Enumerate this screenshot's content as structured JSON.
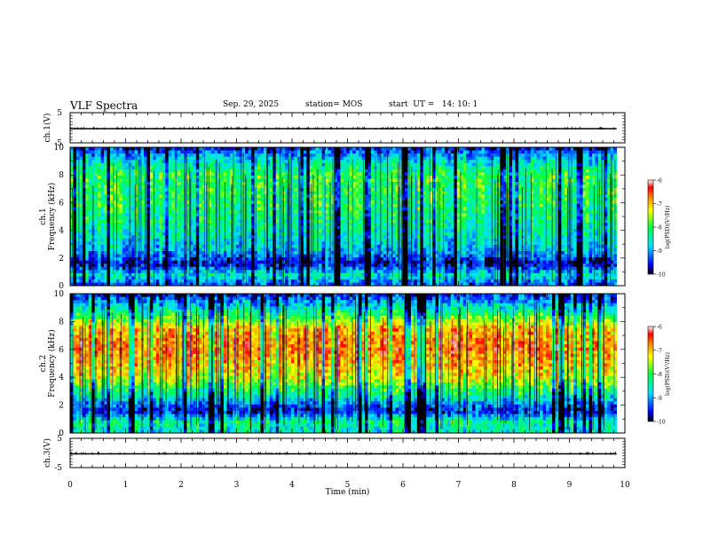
{
  "header": {
    "title": "VLF Spectra",
    "date": "Sep. 29, 2025",
    "station": "station= MOS",
    "start_time": "start  UT =   14: 10: 1"
  },
  "chart_data": [
    {
      "type": "line",
      "name": "ch1-voltage",
      "ylabel": "ch.1(V)",
      "ylim": [
        -5,
        5
      ],
      "y_ticks": [
        "5",
        "-5"
      ],
      "trace_level": 0,
      "x": [
        0,
        9.85
      ],
      "values": [
        0,
        0
      ]
    },
    {
      "type": "heatmap",
      "name": "ch1-spectrogram",
      "ylabel": "ch.1\nFrequency (kHz)",
      "y_ticks": [
        "0",
        "2",
        "4",
        "6",
        "8",
        "10"
      ],
      "ylim": [
        0,
        10
      ],
      "xlim": [
        0,
        9.85
      ],
      "zlim": [
        -10,
        -6
      ],
      "colorbar_label": "log(PSD)(V²/Hz)",
      "colorbar_ticks": [
        "-6",
        "-7",
        "-8",
        "-9",
        "-10"
      ],
      "profile_kHz_vs_logPSD": [
        [
          0,
          -9.4
        ],
        [
          0.8,
          -8.6
        ],
        [
          1.6,
          -9.7
        ],
        [
          2.5,
          -8.9
        ],
        [
          4,
          -8.4
        ],
        [
          6,
          -8.1
        ],
        [
          8,
          -8.0
        ],
        [
          9.3,
          -8.9
        ],
        [
          10,
          -9.6
        ]
      ]
    },
    {
      "type": "heatmap",
      "name": "ch2-spectrogram",
      "ylabel": "ch.2\nFrequency (kHz)",
      "y_ticks": [
        "0",
        "2",
        "4",
        "6",
        "8",
        "10"
      ],
      "ylim": [
        0,
        10
      ],
      "xlim": [
        0,
        9.85
      ],
      "zlim": [
        -10,
        -6
      ],
      "colorbar_label": "log(PSD)(V²/Hz)",
      "colorbar_ticks": [
        "-6",
        "-7",
        "-8",
        "-9",
        "-10"
      ],
      "profile_kHz_vs_logPSD": [
        [
          0,
          -8.6
        ],
        [
          0.8,
          -8.3
        ],
        [
          1.6,
          -9.6
        ],
        [
          2.6,
          -8.5
        ],
        [
          4,
          -7.3
        ],
        [
          6,
          -6.7
        ],
        [
          7.5,
          -7.0
        ],
        [
          8.8,
          -8.4
        ],
        [
          10,
          -9.6
        ]
      ]
    },
    {
      "type": "line",
      "name": "ch3-voltage",
      "ylabel": "ch.3(V)",
      "ylim": [
        -5,
        5
      ],
      "y_ticks": [
        "5",
        "-5"
      ],
      "trace_level": 0,
      "x": [
        0,
        9.85
      ],
      "values": [
        0,
        0
      ]
    }
  ],
  "x_axis": {
    "label": "Time  (min)",
    "range": [
      0,
      10
    ],
    "ticks": [
      "0",
      "1",
      "2",
      "3",
      "4",
      "5",
      "6",
      "7",
      "8",
      "9",
      "10"
    ]
  }
}
